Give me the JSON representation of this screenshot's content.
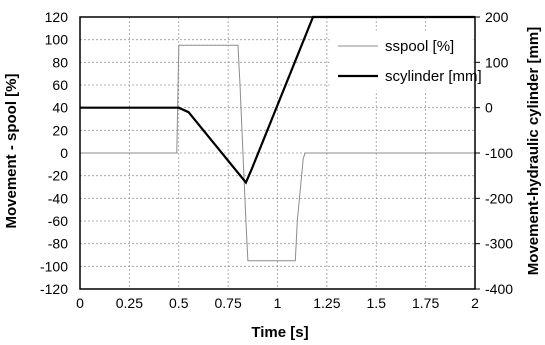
{
  "chart_data": {
    "type": "line",
    "xlabel": "Time [s]",
    "ylabel_left": "Movement - spool [%]",
    "ylabel_right": "Movement-hydraulic cylinder [mm]",
    "xlim": [
      0,
      2
    ],
    "ylim_left": [
      -120,
      120
    ],
    "ylim_right": [
      -400,
      200
    ],
    "x_ticks": [
      "0",
      "0.25",
      "0.5",
      "0.75",
      "1",
      "1.25",
      "1.5",
      "1.75",
      "2"
    ],
    "y_left_ticks": [
      "120",
      "100",
      "80",
      "60",
      "40",
      "20",
      "0",
      "-20",
      "-40",
      "-60",
      "-80",
      "-100",
      "-120"
    ],
    "y_right_ticks": [
      "200",
      "100",
      "0",
      "-100",
      "-200",
      "-300",
      "-400"
    ],
    "grid": true,
    "legend_position": "top-right",
    "series": [
      {
        "name": "sspool [%]",
        "axis": "left",
        "color": "#8c8c8c",
        "x": [
          0,
          0.49,
          0.5,
          0.8,
          0.81,
          0.84,
          0.85,
          1.09,
          1.1,
          1.13,
          1.14,
          2.0
        ],
        "y": [
          0,
          0,
          95,
          95,
          60,
          -60,
          -95,
          -95,
          -60,
          -5,
          0,
          0
        ]
      },
      {
        "name": "scylinder [mm]",
        "axis": "right",
        "color": "#000000",
        "x": [
          0,
          0.5,
          0.55,
          0.84,
          0.87,
          1.18,
          2.0
        ],
        "y": [
          0,
          0,
          -10,
          -165,
          -135,
          200,
          200
        ]
      }
    ]
  }
}
